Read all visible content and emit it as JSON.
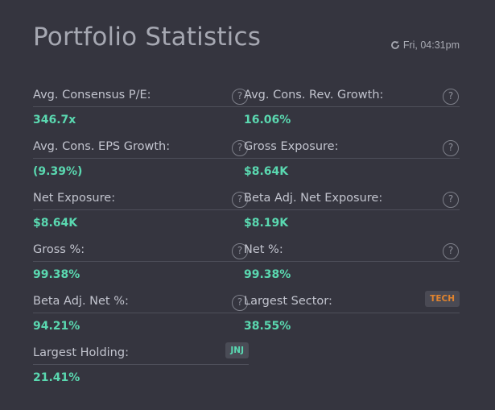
{
  "header": {
    "title": "Portfolio Statistics",
    "timestamp": "Fri, 04:31pm",
    "refresh_icon": "refresh-icon"
  },
  "colors": {
    "background": "#35353f",
    "value": "#5ad8b0",
    "label": "#c2c4ce",
    "tech_tag": "#e0832e"
  },
  "left_stats": [
    {
      "label": "Avg. Consensus P/E:",
      "value": "346.7x"
    },
    {
      "label": "Avg. Cons. EPS Growth:",
      "value": "(9.39%)"
    },
    {
      "label": "Net Exposure:",
      "value": "$8.64K"
    },
    {
      "label": "Gross %:",
      "value": "99.38%"
    },
    {
      "label": "Beta Adj. Net %:",
      "value": "94.21%"
    },
    {
      "label": "Largest Holding:",
      "value": "21.41%",
      "tag": "JNJ"
    }
  ],
  "right_stats": [
    {
      "label": "Avg. Cons. Rev. Growth:",
      "value": "16.06%"
    },
    {
      "label": "Gross Exposure:",
      "value": "$8.64K"
    },
    {
      "label": "Beta Adj. Net Exposure:",
      "value": "$8.19K"
    },
    {
      "label": "Net %:",
      "value": "99.38%"
    },
    {
      "label": "Largest Sector:",
      "value": "38.55%",
      "tag": "TECH"
    }
  ],
  "help_glyph": "?"
}
